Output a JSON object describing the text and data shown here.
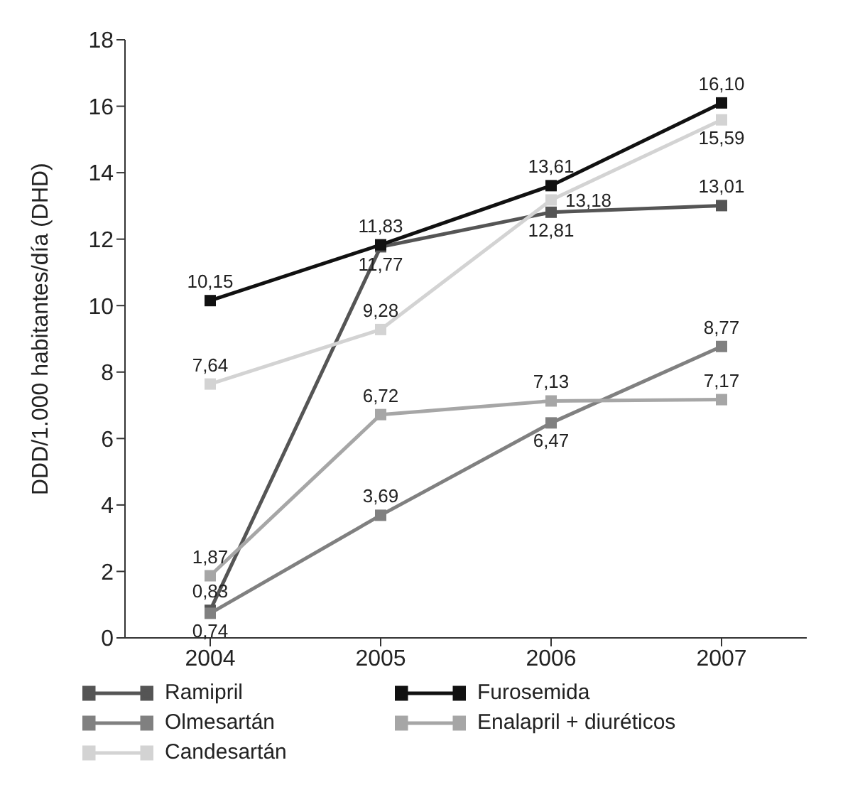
{
  "chart_data": {
    "type": "line",
    "ylabel": "DDD/1.000 habitantes/día (DHD)",
    "categories": [
      "2004",
      "2005",
      "2006",
      "2007"
    ],
    "series": [
      {
        "name": "Ramipril",
        "color": "#555555",
        "values": [
          0.83,
          11.77,
          12.81,
          13.01
        ],
        "value_labels": [
          "0,83",
          "11,77",
          "12,81",
          "13,01"
        ]
      },
      {
        "name": "Furosemida",
        "color": "#111111",
        "values": [
          10.15,
          11.83,
          13.61,
          16.1
        ],
        "value_labels": [
          "10,15",
          "11,83",
          "13,61",
          "16,10"
        ]
      },
      {
        "name": "Olmesartán",
        "color": "#808080",
        "values": [
          0.74,
          3.69,
          6.47,
          8.77
        ],
        "value_labels": [
          "0,74",
          "3,69",
          "6,47",
          "8,77"
        ]
      },
      {
        "name": "Enalapril + diuréticos",
        "color": "#a6a6a6",
        "values": [
          1.87,
          6.72,
          7.13,
          7.17
        ],
        "value_labels": [
          "1,87",
          "6,72",
          "7,13",
          "7,17"
        ]
      },
      {
        "name": "Candesartán",
        "color": "#d3d3d3",
        "values": [
          7.64,
          9.28,
          13.18,
          15.59
        ],
        "value_labels": [
          "7,64",
          "9,28",
          "13,18",
          "15,59"
        ]
      }
    ],
    "ylim": [
      0,
      18
    ],
    "yticks": [
      0,
      2,
      4,
      6,
      8,
      10,
      12,
      14,
      16,
      18
    ],
    "grid": false,
    "legend": "bottom",
    "marker": "square",
    "line_style": "solid"
  }
}
